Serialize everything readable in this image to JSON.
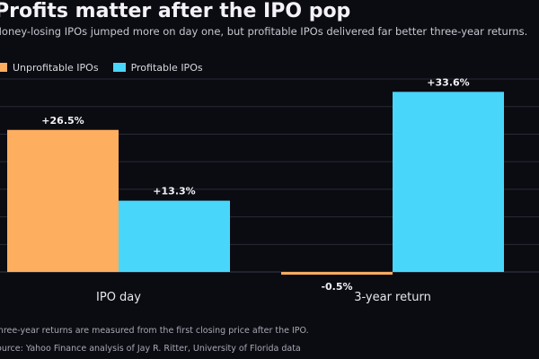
{
  "chart_data": {
    "type": "bar",
    "title": "Profits matter after the IPO pop",
    "subtitle": "Money-losing IPOs jumped more on day one, but profitable IPOs delivered far better three-year returns.",
    "categories": [
      "IPO day",
      "3-year return"
    ],
    "series": [
      {
        "name": "Unprofitable IPOs",
        "values": [
          26.5,
          -0.5
        ],
        "labels": [
          "+26.5%",
          "-0.5%"
        ],
        "color": "#fdae5f"
      },
      {
        "name": "Profitable IPOs",
        "values": [
          13.3,
          33.6
        ],
        "labels": [
          "+13.3%",
          "+33.6%"
        ],
        "color": "#48d7fb"
      }
    ],
    "ylim": [
      -2,
      36
    ],
    "grid": true,
    "legend_position": "top-left",
    "footnote": "Three-year returns are measured from the first closing price after the IPO.",
    "source": "Source: Yahoo Finance analysis of Jay R. Ritter, University of Florida data"
  }
}
